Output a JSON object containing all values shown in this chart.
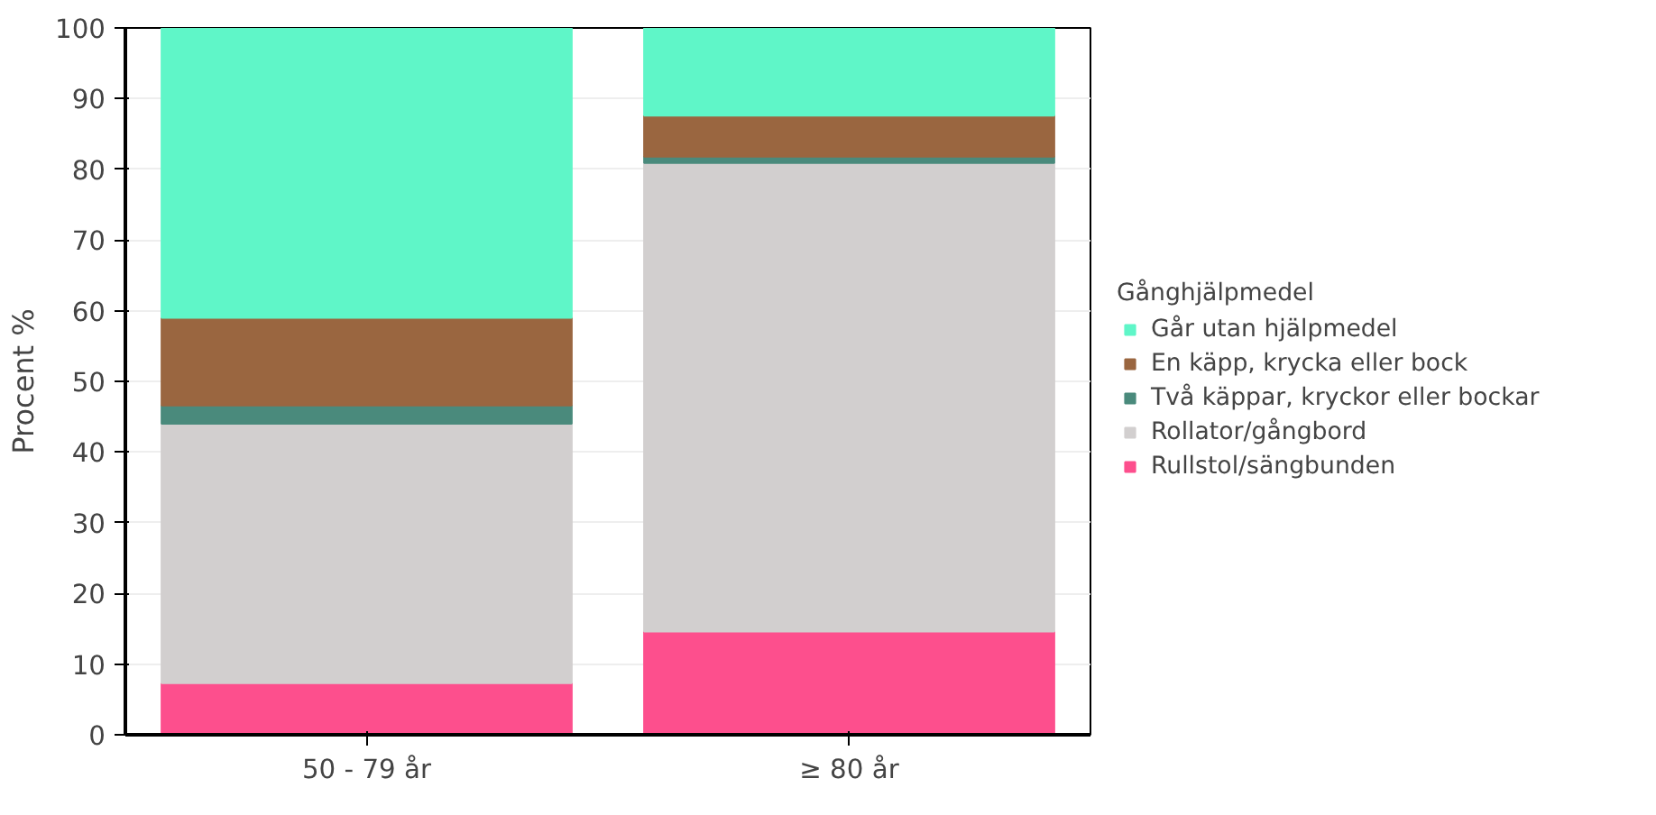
{
  "chart_data": {
    "type": "bar",
    "stacked": true,
    "ylabel": "Procent %",
    "legend_title": "Gånghjälpmedel",
    "legend": "right",
    "grid": "y",
    "categories": [
      "50 - 79 år",
      "≥ 80 år"
    ],
    "ylim": [
      0,
      100
    ],
    "yticks": [
      0,
      10,
      20,
      30,
      40,
      50,
      60,
      70,
      80,
      90,
      100
    ],
    "series": [
      {
        "name": "Rullstol/sängbunden",
        "color": "#fd4f8d",
        "values": [
          7.3,
          14.6
        ]
      },
      {
        "name": "Rollator/gångbord",
        "color": "#d2cfcf",
        "values": [
          36.7,
          66.3
        ]
      },
      {
        "name": "Två käppar, kryckor eller bockar",
        "color": "#4a8a7c",
        "values": [
          2.6,
          0.9
        ]
      },
      {
        "name": "En käpp, krycka eller bock",
        "color": "#9a6640",
        "values": [
          12.4,
          5.8
        ]
      },
      {
        "name": "Går utan hjälpmedel",
        "color": "#5ff6c8",
        "values": [
          41.0,
          12.4
        ]
      }
    ]
  }
}
